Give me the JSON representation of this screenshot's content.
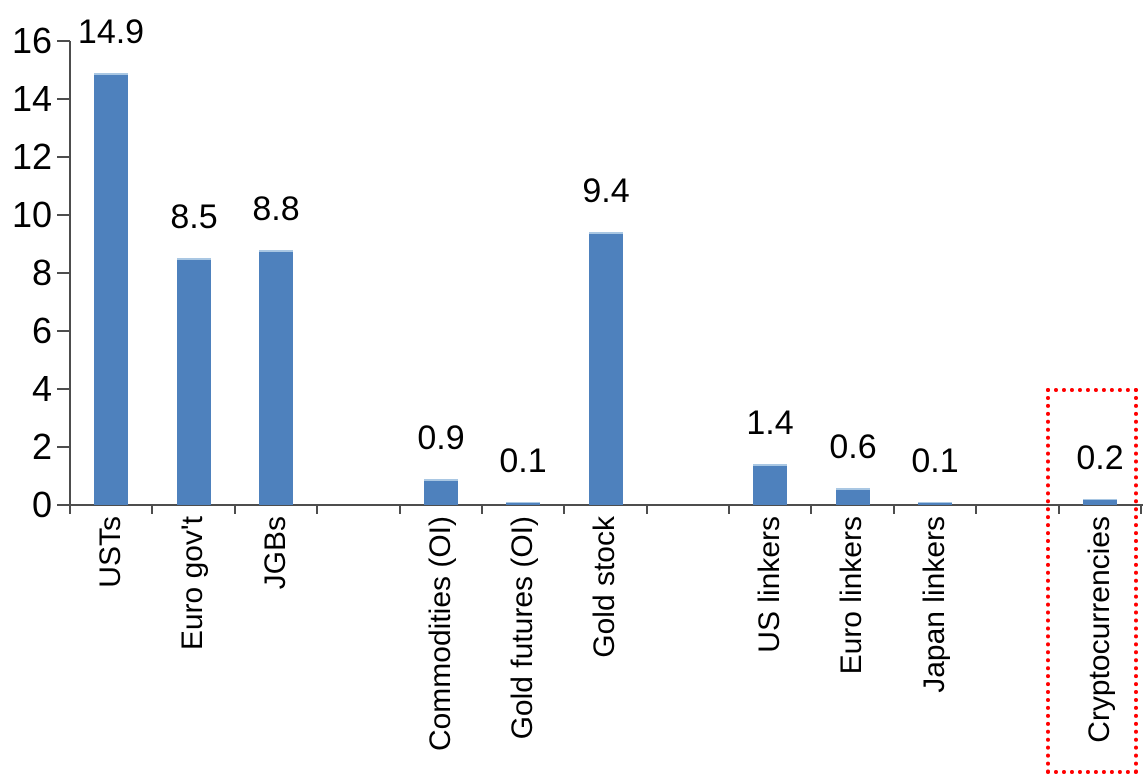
{
  "chart_data": {
    "type": "bar",
    "title": "",
    "xlabel": "",
    "ylabel": "",
    "ylim": [
      0,
      16
    ],
    "yticks": [
      0,
      2,
      4,
      6,
      8,
      10,
      12,
      14,
      16
    ],
    "grid": false,
    "legend": null,
    "bar_color": "#4E81BD",
    "bar_top_edge_color": "#A9C7E3",
    "axis_color": "#4D4D4D",
    "label_color": "#000000",
    "highlight_box_color": "#FF0000",
    "categories": [
      "USTs",
      "Euro gov't",
      "JGBs",
      "Commodities (OI)",
      "Gold futures (OI)",
      "Gold stock",
      "US linkers",
      "Euro linkers",
      "Japan linkers",
      "Cryptocurrencies"
    ],
    "values": [
      14.9,
      8.5,
      8.8,
      0.9,
      0.1,
      9.4,
      1.4,
      0.6,
      0.1,
      0.2
    ],
    "highlighted_category": "Cryptocurrencies",
    "slots": [
      {
        "label": "USTs",
        "value": 14.9,
        "value_label": "14.9"
      },
      {
        "label": "Euro gov't",
        "value": 8.5,
        "value_label": "8.5"
      },
      {
        "label": "JGBs",
        "value": 8.8,
        "value_label": "8.8"
      },
      {
        "label": "",
        "value": null,
        "value_label": ""
      },
      {
        "label": "Commodities (OI)",
        "value": 0.9,
        "value_label": "0.9"
      },
      {
        "label": "Gold futures (OI)",
        "value": 0.1,
        "value_label": "0.1"
      },
      {
        "label": "Gold stock",
        "value": 9.4,
        "value_label": "9.4"
      },
      {
        "label": "",
        "value": null,
        "value_label": ""
      },
      {
        "label": "US linkers",
        "value": 1.4,
        "value_label": "1.4"
      },
      {
        "label": "Euro linkers",
        "value": 0.6,
        "value_label": "0.6"
      },
      {
        "label": "Japan linkers",
        "value": 0.1,
        "value_label": "0.1"
      },
      {
        "label": "",
        "value": null,
        "value_label": ""
      },
      {
        "label": "Cryptocurrencies",
        "value": 0.2,
        "value_label": "0.2",
        "highlighted": true
      }
    ]
  }
}
